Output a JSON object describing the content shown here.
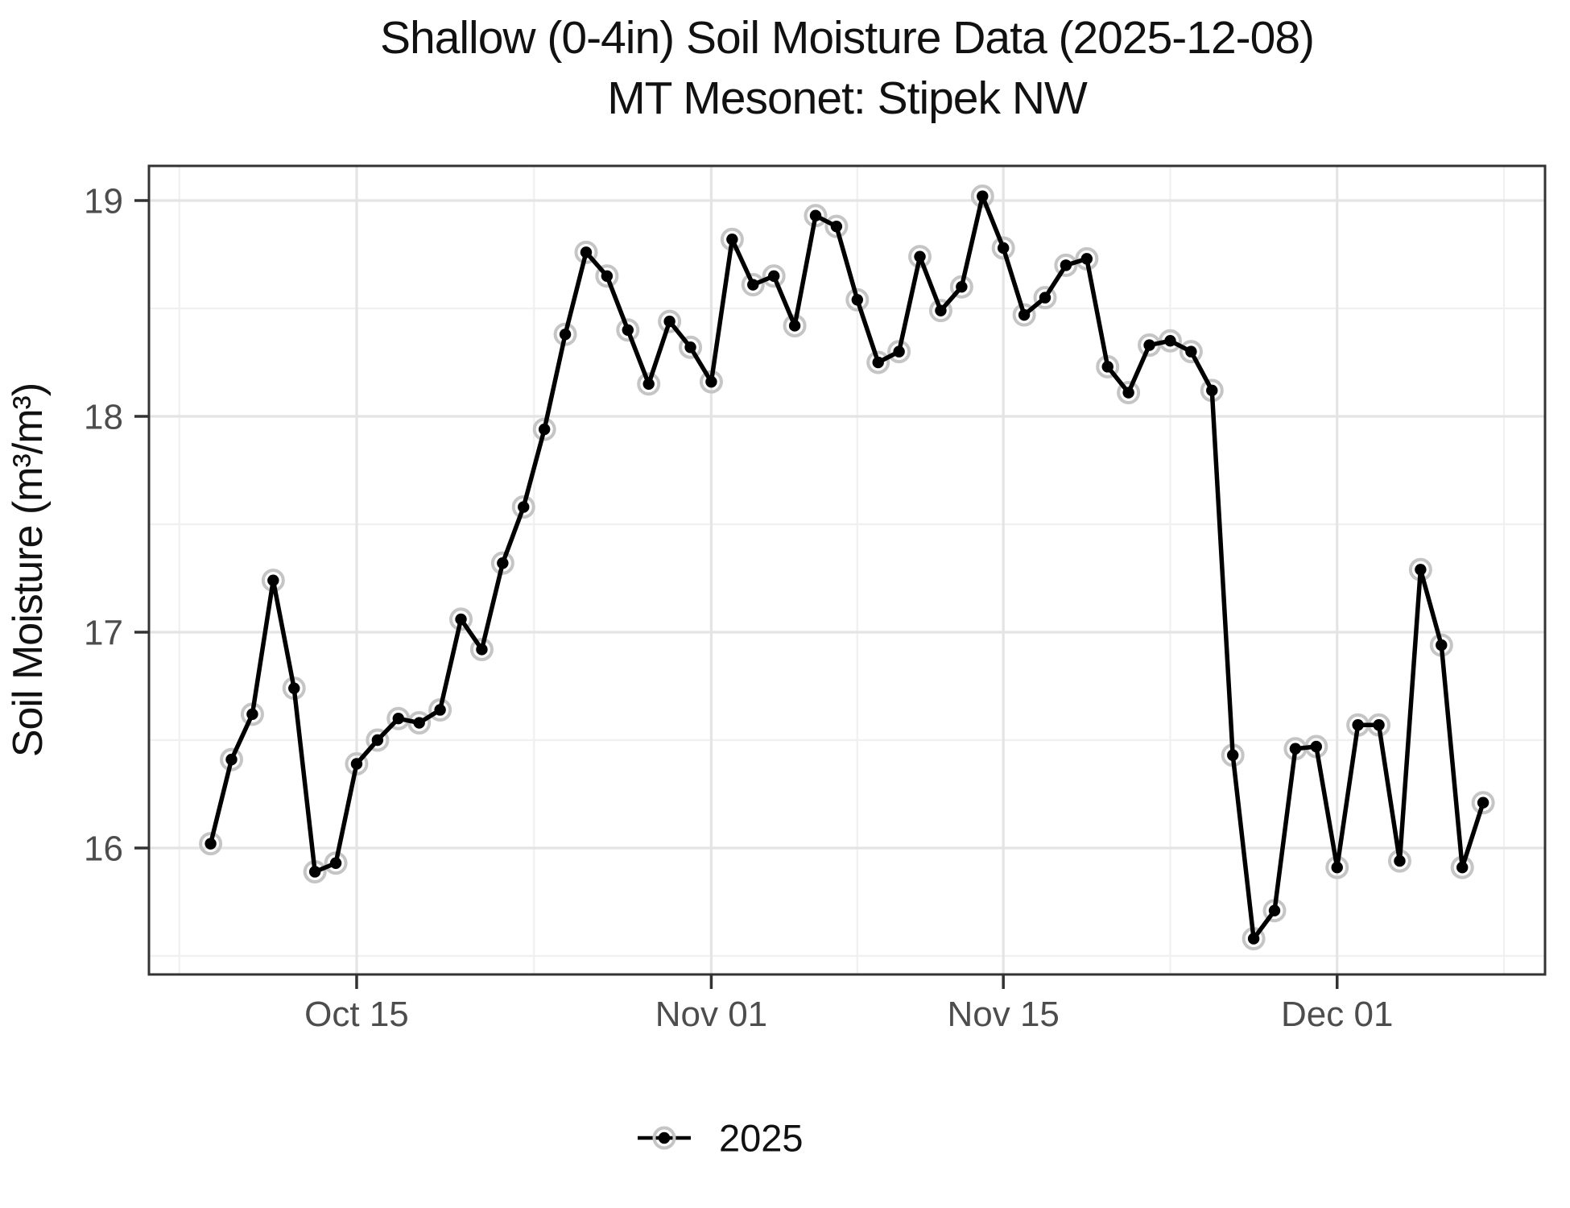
{
  "chart_data": {
    "type": "line",
    "title": "Shallow (0-4in) Soil Moisture Data (2025-12-08)",
    "subtitle": "MT Mesonet: Stipek NW",
    "xlabel": "",
    "ylabel": "Soil Moisture (m³/m³)",
    "legend_position": "bottom",
    "grid": "major and minor gridlines, light gray on white panel with dark border",
    "x_tick_labels": [
      "Oct 15",
      "Nov 01",
      "Nov 15",
      "Dec 01"
    ],
    "x_tick_days": [
      7,
      24,
      38,
      54
    ],
    "x_minor_days": [
      -1.5,
      15.5,
      31,
      46,
      62
    ],
    "y_ticks": [
      16,
      17,
      18,
      19
    ],
    "y_tick_labels": [
      "16",
      "17",
      "18",
      "19"
    ],
    "y_minor": [
      15.5,
      16.5,
      17.5,
      18.5
    ],
    "ylim": [
      15.42,
      19.15
    ],
    "colors": {
      "line": "#000000",
      "point": "#000000",
      "point_halo": "#c5c5c5",
      "grid_major": "#e4e4e4",
      "grid_minor": "#f0f0f0",
      "axis_text": "#4d4d4d",
      "panel_border": "#333333"
    },
    "series": [
      {
        "name": "2025",
        "dates": [
          "2025-10-08",
          "2025-10-09",
          "2025-10-10",
          "2025-10-11",
          "2025-10-12",
          "2025-10-13",
          "2025-10-14",
          "2025-10-15",
          "2025-10-16",
          "2025-10-17",
          "2025-10-18",
          "2025-10-19",
          "2025-10-20",
          "2025-10-21",
          "2025-10-22",
          "2025-10-23",
          "2025-10-24",
          "2025-10-25",
          "2025-10-26",
          "2025-10-27",
          "2025-10-28",
          "2025-10-29",
          "2025-10-30",
          "2025-10-31",
          "2025-11-01",
          "2025-11-02",
          "2025-11-03",
          "2025-11-04",
          "2025-11-05",
          "2025-11-06",
          "2025-11-07",
          "2025-11-08",
          "2025-11-09",
          "2025-11-10",
          "2025-11-11",
          "2025-11-12",
          "2025-11-13",
          "2025-11-14",
          "2025-11-15",
          "2025-11-16",
          "2025-11-17",
          "2025-11-18",
          "2025-11-19",
          "2025-11-20",
          "2025-11-21",
          "2025-11-22",
          "2025-11-23",
          "2025-11-24",
          "2025-11-25",
          "2025-11-26",
          "2025-11-27",
          "2025-11-28",
          "2025-11-29",
          "2025-11-30",
          "2025-12-01",
          "2025-12-02",
          "2025-12-03",
          "2025-12-04",
          "2025-12-05",
          "2025-12-06",
          "2025-12-07",
          "2025-12-08"
        ],
        "values": [
          16.02,
          16.41,
          16.62,
          17.24,
          16.74,
          15.89,
          15.93,
          16.39,
          16.5,
          16.6,
          16.58,
          16.64,
          17.06,
          16.92,
          17.32,
          17.58,
          17.94,
          18.38,
          18.76,
          18.65,
          18.4,
          18.15,
          18.44,
          18.32,
          18.16,
          18.82,
          18.61,
          18.65,
          18.42,
          18.93,
          18.88,
          18.54,
          18.25,
          18.3,
          18.74,
          18.49,
          18.6,
          19.02,
          18.78,
          18.47,
          18.55,
          18.7,
          18.73,
          18.23,
          18.11,
          18.33,
          18.35,
          18.3,
          18.12,
          16.43,
          15.58,
          15.71,
          16.46,
          16.47,
          15.91,
          16.57,
          16.57,
          15.94,
          17.29,
          16.94,
          15.91,
          16.21
        ]
      }
    ]
  }
}
